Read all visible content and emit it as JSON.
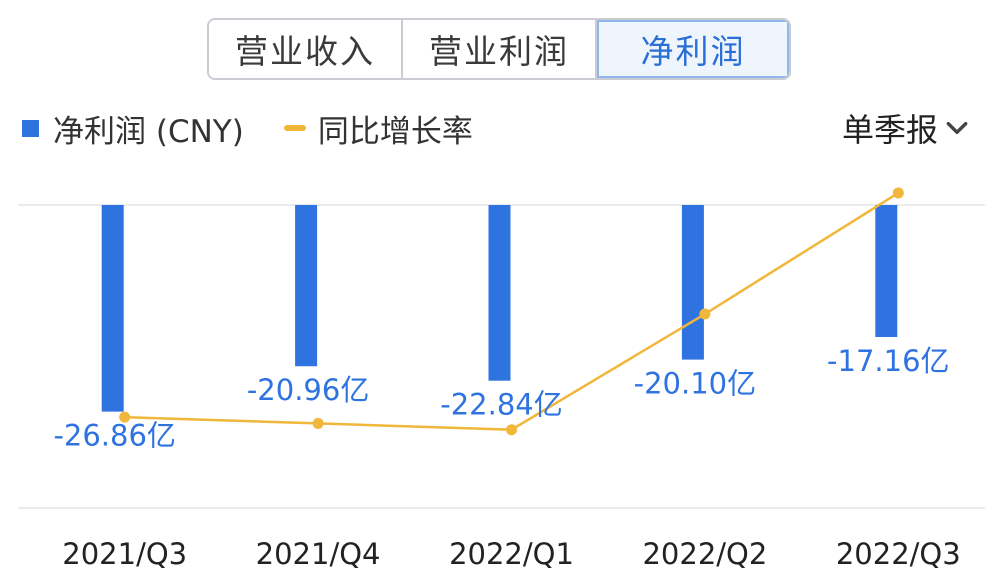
{
  "tabs": [
    {
      "label": "营业收入",
      "active": false
    },
    {
      "label": "营业利润",
      "active": false
    },
    {
      "label": "净利润",
      "active": true
    }
  ],
  "legend": {
    "bar_label": "净利润 (CNY)",
    "line_label": "同比增长率"
  },
  "period_select": {
    "value": "单季报",
    "icon": "chevron-down-icon"
  },
  "colors": {
    "bar": "#2f73e0",
    "line": "#f0b73a",
    "label": "#2f73e0"
  },
  "chart_data": {
    "type": "bar",
    "categories": [
      "2021/Q3",
      "2021/Q4",
      "2022/Q1",
      "2022/Q2",
      "2022/Q3"
    ],
    "series": [
      {
        "name": "净利润 (CNY)",
        "type": "bar",
        "values": [
          -26.86,
          -20.96,
          -22.84,
          -20.1,
          -17.16
        ],
        "labels": [
          "-26.86亿",
          "-20.96亿",
          "-22.84亿",
          "-20.10亿",
          "-17.16亿"
        ]
      },
      {
        "name": "同比增长率",
        "type": "line",
        "values": [
          -10,
          -10.7,
          -11.4,
          1.5,
          15
        ]
      }
    ],
    "bar_ylim": [
      -28.6,
      0
    ],
    "line_ylim": [
      -15,
      17
    ],
    "grid": true,
    "legend_position": "top-left"
  }
}
